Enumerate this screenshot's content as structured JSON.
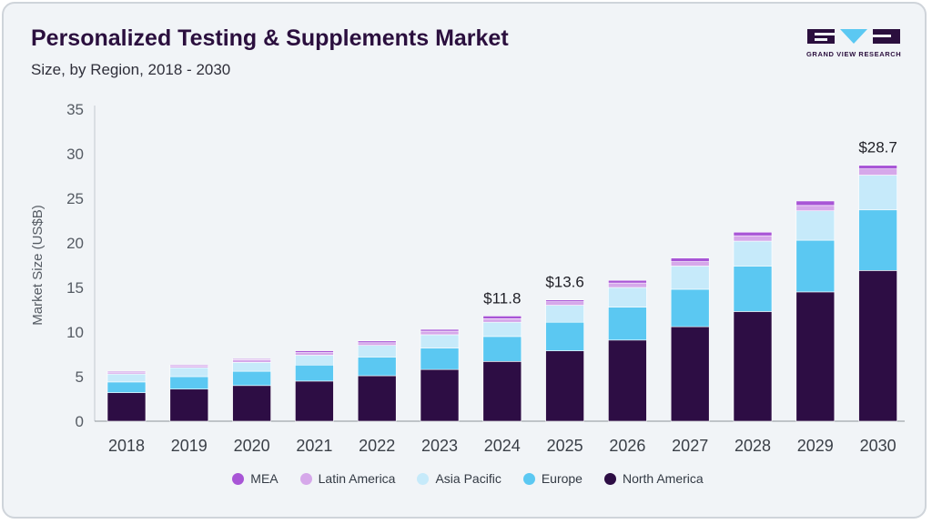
{
  "title": "Personalized Testing & Supplements Market",
  "subtitle": "Size, by Region, 2018 - 2030",
  "logo": {
    "text": "GRAND VIEW RESEARCH"
  },
  "colors": {
    "North America": "#2d0d44",
    "Europe": "#5bc8f2",
    "Asia Pacific": "#c6eafa",
    "Latin America": "#d6a8ea",
    "MEA": "#a855d6",
    "background": "#f1f4f7",
    "title": "#2b0f3e"
  },
  "chart_data": {
    "type": "bar",
    "stacked": true,
    "title": "Personalized Testing & Supplements Market",
    "subtitle": "Size, by Region, 2018 - 2030",
    "xlabel": "",
    "ylabel": "Market Size (US$B)",
    "ylim": [
      0,
      35
    ],
    "yticks": [
      0,
      5,
      10,
      15,
      20,
      25,
      30,
      35
    ],
    "grid": false,
    "legend_position": "bottom",
    "categories": [
      "2018",
      "2019",
      "2020",
      "2021",
      "2022",
      "2023",
      "2024",
      "2025",
      "2026",
      "2027",
      "2028",
      "2029",
      "2030"
    ],
    "series": [
      {
        "name": "North America",
        "values": [
          3.2,
          3.6,
          4.0,
          4.5,
          5.1,
          5.8,
          6.7,
          7.9,
          9.1,
          10.6,
          12.3,
          14.5,
          16.9
        ]
      },
      {
        "name": "Europe",
        "values": [
          1.2,
          1.4,
          1.6,
          1.8,
          2.1,
          2.4,
          2.8,
          3.2,
          3.7,
          4.2,
          5.1,
          5.8,
          6.8
        ]
      },
      {
        "name": "Asia Pacific",
        "values": [
          0.9,
          1.0,
          1.0,
          1.1,
          1.3,
          1.5,
          1.6,
          1.9,
          2.2,
          2.6,
          2.8,
          3.3,
          3.9
        ]
      },
      {
        "name": "Latin America",
        "values": [
          0.2,
          0.2,
          0.3,
          0.3,
          0.3,
          0.4,
          0.4,
          0.4,
          0.5,
          0.5,
          0.6,
          0.6,
          0.7
        ]
      },
      {
        "name": "MEA",
        "values": [
          0.1,
          0.1,
          0.1,
          0.2,
          0.2,
          0.2,
          0.3,
          0.2,
          0.3,
          0.4,
          0.4,
          0.5,
          0.4
        ]
      }
    ],
    "annotations": [
      {
        "category": "2024",
        "label": "$11.8",
        "value": 11.8
      },
      {
        "category": "2025",
        "label": "$13.6",
        "value": 13.6
      },
      {
        "category": "2030",
        "label": "$28.7",
        "value": 28.7
      }
    ]
  }
}
